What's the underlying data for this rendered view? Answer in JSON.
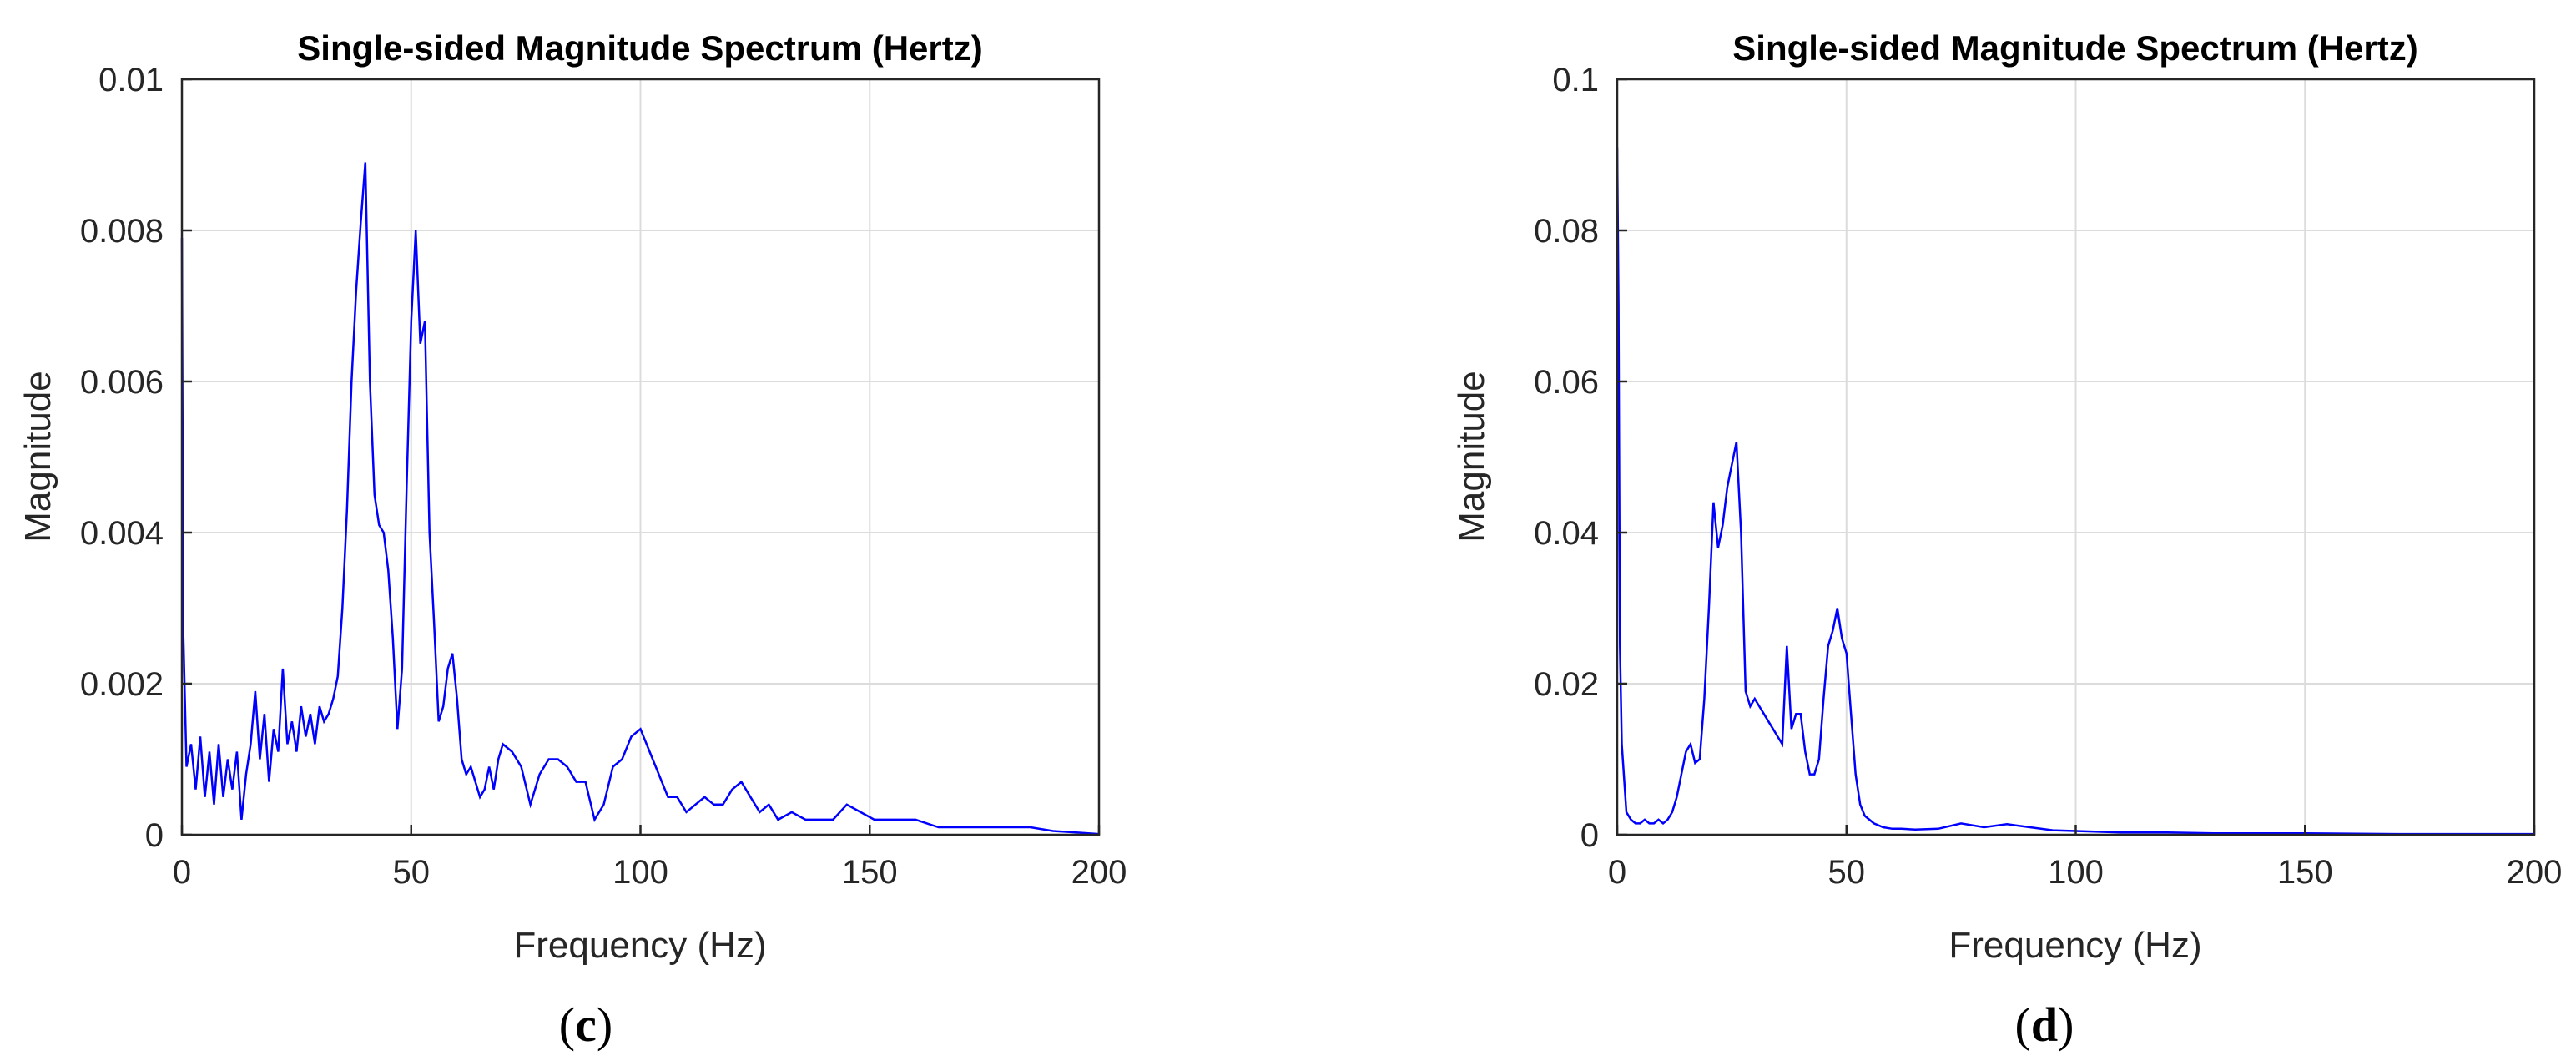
{
  "chart_data": [
    {
      "type": "line",
      "title": "Single-sided Magnitude Spectrum (Hertz)",
      "xlabel": "Frequency (Hz)",
      "ylabel": "Magnitude",
      "xlim": [
        0,
        200
      ],
      "ylim": [
        0,
        0.01
      ],
      "xticks": [
        "0",
        "50",
        "100",
        "150",
        "200"
      ],
      "yticks": [
        "0",
        "0.002",
        "0.004",
        "0.006",
        "0.008",
        "0.01"
      ],
      "grid": true,
      "caption": "c",
      "color": "#0000ff",
      "series": [
        {
          "x": [
            0,
            0.3,
            1,
            2,
            3,
            4,
            5,
            6,
            7,
            8,
            9,
            10,
            11,
            12,
            13,
            14,
            15,
            16,
            17,
            18,
            19,
            20,
            21,
            22,
            23,
            24,
            25,
            26,
            27,
            28,
            29,
            30,
            31,
            32,
            33,
            34,
            35,
            36,
            37,
            38,
            39,
            40,
            41,
            42,
            43,
            44,
            45,
            46,
            47,
            48,
            49,
            50,
            51,
            52,
            53,
            54,
            55,
            56,
            57,
            58,
            59,
            60,
            61,
            62,
            63,
            64,
            65,
            66,
            67,
            68,
            69,
            70,
            72,
            74,
            76,
            78,
            80,
            82,
            84,
            86,
            88,
            90,
            92,
            94,
            96,
            98,
            100,
            102,
            104,
            106,
            108,
            110,
            112,
            114,
            116,
            118,
            120,
            122,
            124,
            126,
            128,
            130,
            133,
            136,
            139,
            142,
            145,
            148,
            151,
            154,
            157,
            160,
            165,
            170,
            175,
            180,
            185,
            190,
            195,
            200
          ],
          "values": [
            0.0079,
            0.0027,
            0.0009,
            0.0012,
            0.0006,
            0.0013,
            0.0005,
            0.0011,
            0.0004,
            0.0012,
            0.0005,
            0.001,
            0.0006,
            0.0011,
            0.0002,
            0.0008,
            0.0012,
            0.0019,
            0.001,
            0.0016,
            0.0007,
            0.0014,
            0.0011,
            0.0022,
            0.0012,
            0.0015,
            0.0011,
            0.0017,
            0.0013,
            0.0016,
            0.0012,
            0.0017,
            0.0015,
            0.0016,
            0.0018,
            0.0021,
            0.003,
            0.0043,
            0.006,
            0.0072,
            0.0081,
            0.0089,
            0.006,
            0.0045,
            0.0041,
            0.004,
            0.0035,
            0.0026,
            0.0014,
            0.0022,
            0.0046,
            0.0068,
            0.008,
            0.0065,
            0.0068,
            0.004,
            0.0028,
            0.0015,
            0.0017,
            0.0022,
            0.0024,
            0.0018,
            0.001,
            0.0008,
            0.0009,
            0.0007,
            0.0005,
            0.0006,
            0.0009,
            0.0006,
            0.001,
            0.0012,
            0.0011,
            0.0009,
            0.0004,
            0.0008,
            0.001,
            0.001,
            0.0009,
            0.0007,
            0.0007,
            0.0002,
            0.0004,
            0.0009,
            0.001,
            0.0013,
            0.0014,
            0.0011,
            0.0008,
            0.0005,
            0.0005,
            0.0003,
            0.0004,
            0.0005,
            0.0004,
            0.0004,
            0.0006,
            0.0007,
            0.0005,
            0.0003,
            0.0004,
            0.0002,
            0.0003,
            0.0002,
            0.0002,
            0.0002,
            0.0004,
            0.0003,
            0.0002,
            0.0002,
            0.0002,
            0.0002,
            0.0001,
            0.0001,
            0.0001,
            0.0001,
            0.0001,
            5e-05,
            3e-05,
            1e-05
          ]
        }
      ]
    },
    {
      "type": "line",
      "title": "Single-sided Magnitude Spectrum (Hertz)",
      "xlabel": "Frequency (Hz)",
      "ylabel": "Magnitude",
      "xlim": [
        0,
        200
      ],
      "ylim": [
        0,
        0.1
      ],
      "xticks": [
        "0",
        "50",
        "100",
        "150",
        "200"
      ],
      "yticks": [
        "0",
        "0.02",
        "0.04",
        "0.06",
        "0.08",
        "0.1"
      ],
      "grid": true,
      "caption": "d",
      "color": "#0000ff",
      "series": [
        {
          "x": [
            0,
            0.3,
            0.6,
            1,
            2,
            3,
            4,
            5,
            6,
            7,
            8,
            9,
            10,
            11,
            12,
            13,
            14,
            15,
            16,
            17,
            18,
            19,
            20,
            21,
            22,
            23,
            24,
            25,
            26,
            27,
            28,
            29,
            30,
            31,
            32,
            33,
            34,
            35,
            36,
            37,
            38,
            39,
            40,
            41,
            42,
            43,
            44,
            45,
            46,
            47,
            48,
            49,
            50,
            51,
            52,
            53,
            54,
            55,
            56,
            58,
            60,
            62,
            65,
            70,
            75,
            80,
            85,
            90,
            95,
            100,
            110,
            120,
            130,
            150,
            170,
            200
          ],
          "values": [
            0.091,
            0.07,
            0.025,
            0.012,
            0.003,
            0.002,
            0.0015,
            0.0015,
            0.002,
            0.0015,
            0.0015,
            0.002,
            0.0015,
            0.002,
            0.003,
            0.005,
            0.008,
            0.011,
            0.012,
            0.0095,
            0.01,
            0.018,
            0.03,
            0.044,
            0.038,
            0.041,
            0.046,
            0.049,
            0.052,
            0.04,
            0.019,
            0.017,
            0.018,
            0.017,
            0.016,
            0.015,
            0.014,
            0.013,
            0.012,
            0.025,
            0.014,
            0.016,
            0.016,
            0.011,
            0.008,
            0.008,
            0.01,
            0.018,
            0.025,
            0.027,
            0.03,
            0.026,
            0.024,
            0.016,
            0.008,
            0.004,
            0.0025,
            0.002,
            0.0015,
            0.001,
            0.0008,
            0.0008,
            0.0007,
            0.0008,
            0.0015,
            0.001,
            0.0014,
            0.001,
            0.0006,
            0.0005,
            0.0003,
            0.0003,
            0.0002,
            0.0002,
            0.0001,
            0.0001
          ]
        }
      ]
    }
  ]
}
